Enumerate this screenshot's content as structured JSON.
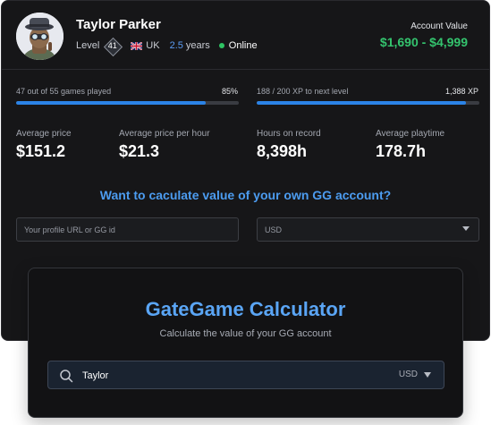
{
  "profile": {
    "name": "Taylor Parker",
    "level_label": "Level",
    "level": "41",
    "country": "UK",
    "years": "2.5",
    "years_word": "years",
    "status": "Online",
    "status_color": "#2ec463"
  },
  "account": {
    "label": "Account Value",
    "value": "$1,690 - $4,999",
    "value_color": "#34c46e"
  },
  "progress": {
    "games": {
      "label": "47 out of 55 games played",
      "pct_label": "85%",
      "fraction": 0.85
    },
    "xp": {
      "label": "188 / 200 XP to next level",
      "right_label": "1,388 XP",
      "fraction": 0.94
    }
  },
  "stats": [
    {
      "label": "Average price",
      "value": "$151.2"
    },
    {
      "label": "Average price per hour",
      "value": "$21.3"
    },
    {
      "label": "Hours on record",
      "value": "8,398h"
    },
    {
      "label": "Average playtime",
      "value": "178.7h"
    }
  ],
  "cta": {
    "text": "Want to caculate value of your own GG account?",
    "profile_placeholder": "Your profile URL or GG id",
    "currency": "USD"
  },
  "calculator": {
    "title": "GateGame Calculator",
    "subtitle": "Calculate the value of your GG account",
    "search_value": "Taylor",
    "currency": "USD"
  },
  "icons": {
    "avatar": "avatar-character",
    "flag": "uk-flag-icon",
    "level": "level-diamond-badge",
    "search": "search-icon",
    "dropdown": "chevron-down-icon"
  },
  "colors": {
    "accent": "#2b83e6",
    "title_blue": "#5aa5f5",
    "background": "#161618"
  }
}
